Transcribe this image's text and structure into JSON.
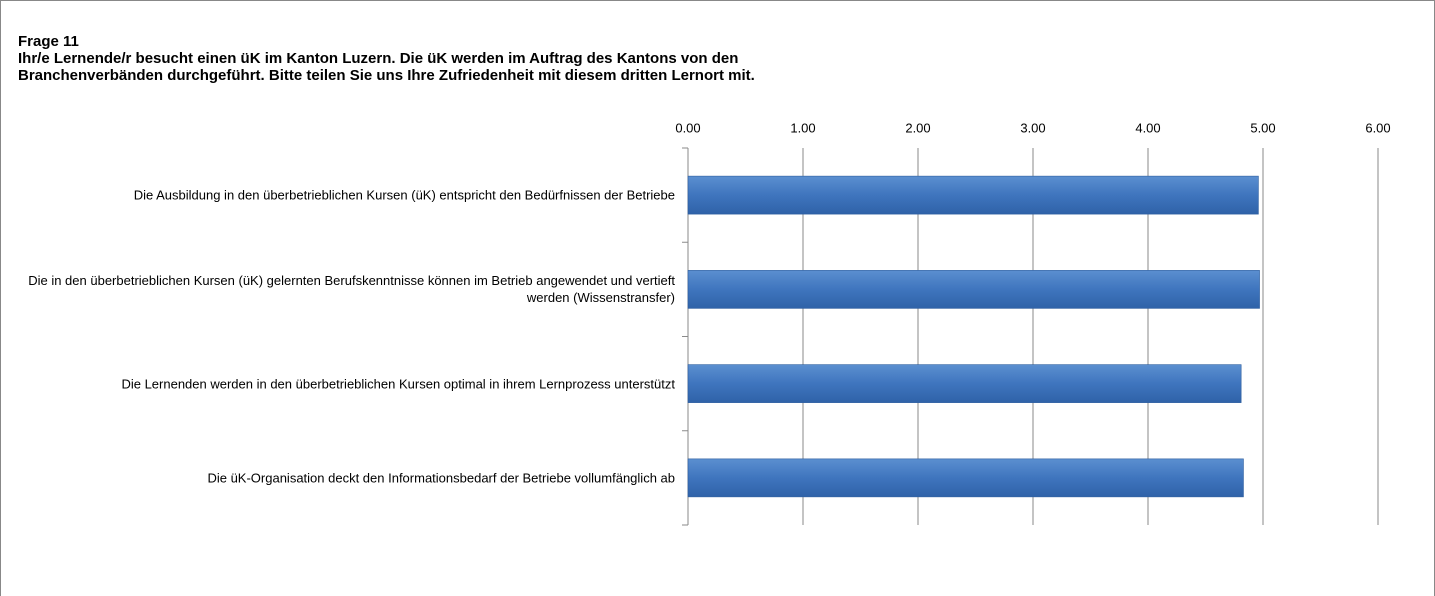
{
  "chart_data": {
    "type": "bar",
    "orientation": "horizontal",
    "title": "Frage 11",
    "subtitle": [
      "Ihr/e Lernende/r besucht einen üK im Kanton Luzern. Die üK werden im Auftrag des Kantons von den",
      "Branchenverbänden durchgeführt. Bitte teilen Sie uns Ihre Zufriedenheit mit diesem dritten Lernort mit."
    ],
    "categories": [
      "Die Ausbildung in den überbetrieblichen Kursen (üK) entspricht den Bedürfnissen der Betriebe",
      "Die in den überbetrieblichen Kursen (üK) gelernten Berufskenntnisse können im Betrieb angewendet und vertieft werden (Wissenstransfer)",
      "Die Lernenden werden in den überbetrieblichen Kursen optimal in ihrem Lernprozess unterstützt",
      "Die üK-Organisation deckt den Informationsbedarf der Betriebe vollumfänglich ab"
    ],
    "values": [
      4.96,
      4.97,
      4.81,
      4.83
    ],
    "color": "#4a7ebb",
    "xlim": [
      0,
      6
    ],
    "xticks": [
      {
        "value": 0,
        "label": "0.00"
      },
      {
        "value": 1,
        "label": "1.00"
      },
      {
        "value": 2,
        "label": "2.00"
      },
      {
        "value": 3,
        "label": "3.00"
      },
      {
        "value": 4,
        "label": "4.00"
      },
      {
        "value": 5,
        "label": "5.00"
      },
      {
        "value": 6,
        "label": "6.00"
      }
    ],
    "grid": true
  }
}
